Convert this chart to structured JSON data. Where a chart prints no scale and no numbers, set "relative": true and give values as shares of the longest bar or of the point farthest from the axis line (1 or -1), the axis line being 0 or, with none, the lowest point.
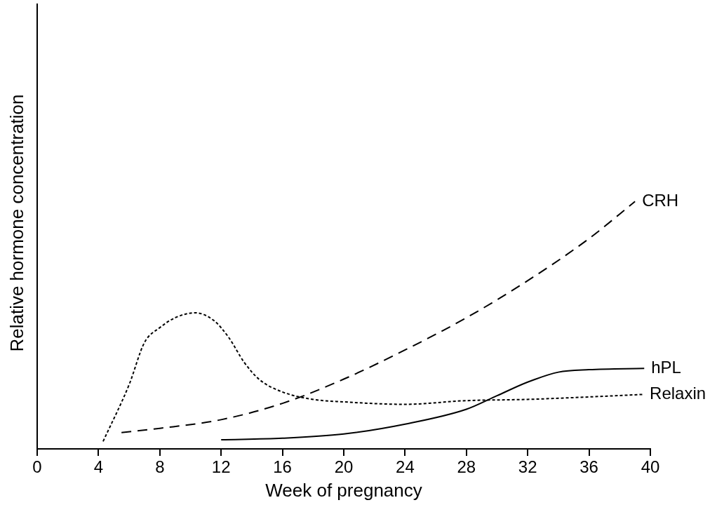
{
  "chart_data": {
    "type": "line",
    "relative": true,
    "xlabel": "Week of pregnancy",
    "ylabel": "Relative hormone concentration",
    "xlim": [
      0,
      40
    ],
    "xticks": [
      0,
      4,
      8,
      12,
      16,
      20,
      24,
      28,
      32,
      36,
      40
    ],
    "grid": false,
    "legend": false,
    "marker": "none",
    "series": [
      {
        "name": "CRH",
        "color": "#000000",
        "line_style": "dashed",
        "x": [
          5.5,
          8,
          12,
          16,
          20,
          24,
          28,
          32,
          36,
          39
        ],
        "values": [
          0.066,
          0.083,
          0.118,
          0.184,
          0.282,
          0.4,
          0.53,
          0.68,
          0.85,
          1
        ]
      },
      {
        "name": "hPL",
        "color": "#000000",
        "line_style": "solid",
        "x": [
          12,
          16,
          20,
          24,
          28,
          30,
          32,
          34,
          36,
          39.6
        ],
        "values": [
          0.037,
          0.043,
          0.06,
          0.1,
          0.16,
          0.215,
          0.27,
          0.31,
          0.32,
          0.325
        ]
      },
      {
        "name": "Relaxin",
        "color": "#000000",
        "line_style": "dotted",
        "x": [
          4.3,
          6,
          7,
          8,
          9,
          10.3,
          11.5,
          12.5,
          13.5,
          14.5,
          16,
          18,
          20,
          24,
          28,
          32,
          36,
          39.5
        ],
        "values": [
          0.03,
          0.26,
          0.43,
          0.49,
          0.53,
          0.55,
          0.52,
          0.45,
          0.35,
          0.28,
          0.23,
          0.2,
          0.19,
          0.18,
          0.195,
          0.2,
          0.21,
          0.22
        ]
      }
    ]
  }
}
